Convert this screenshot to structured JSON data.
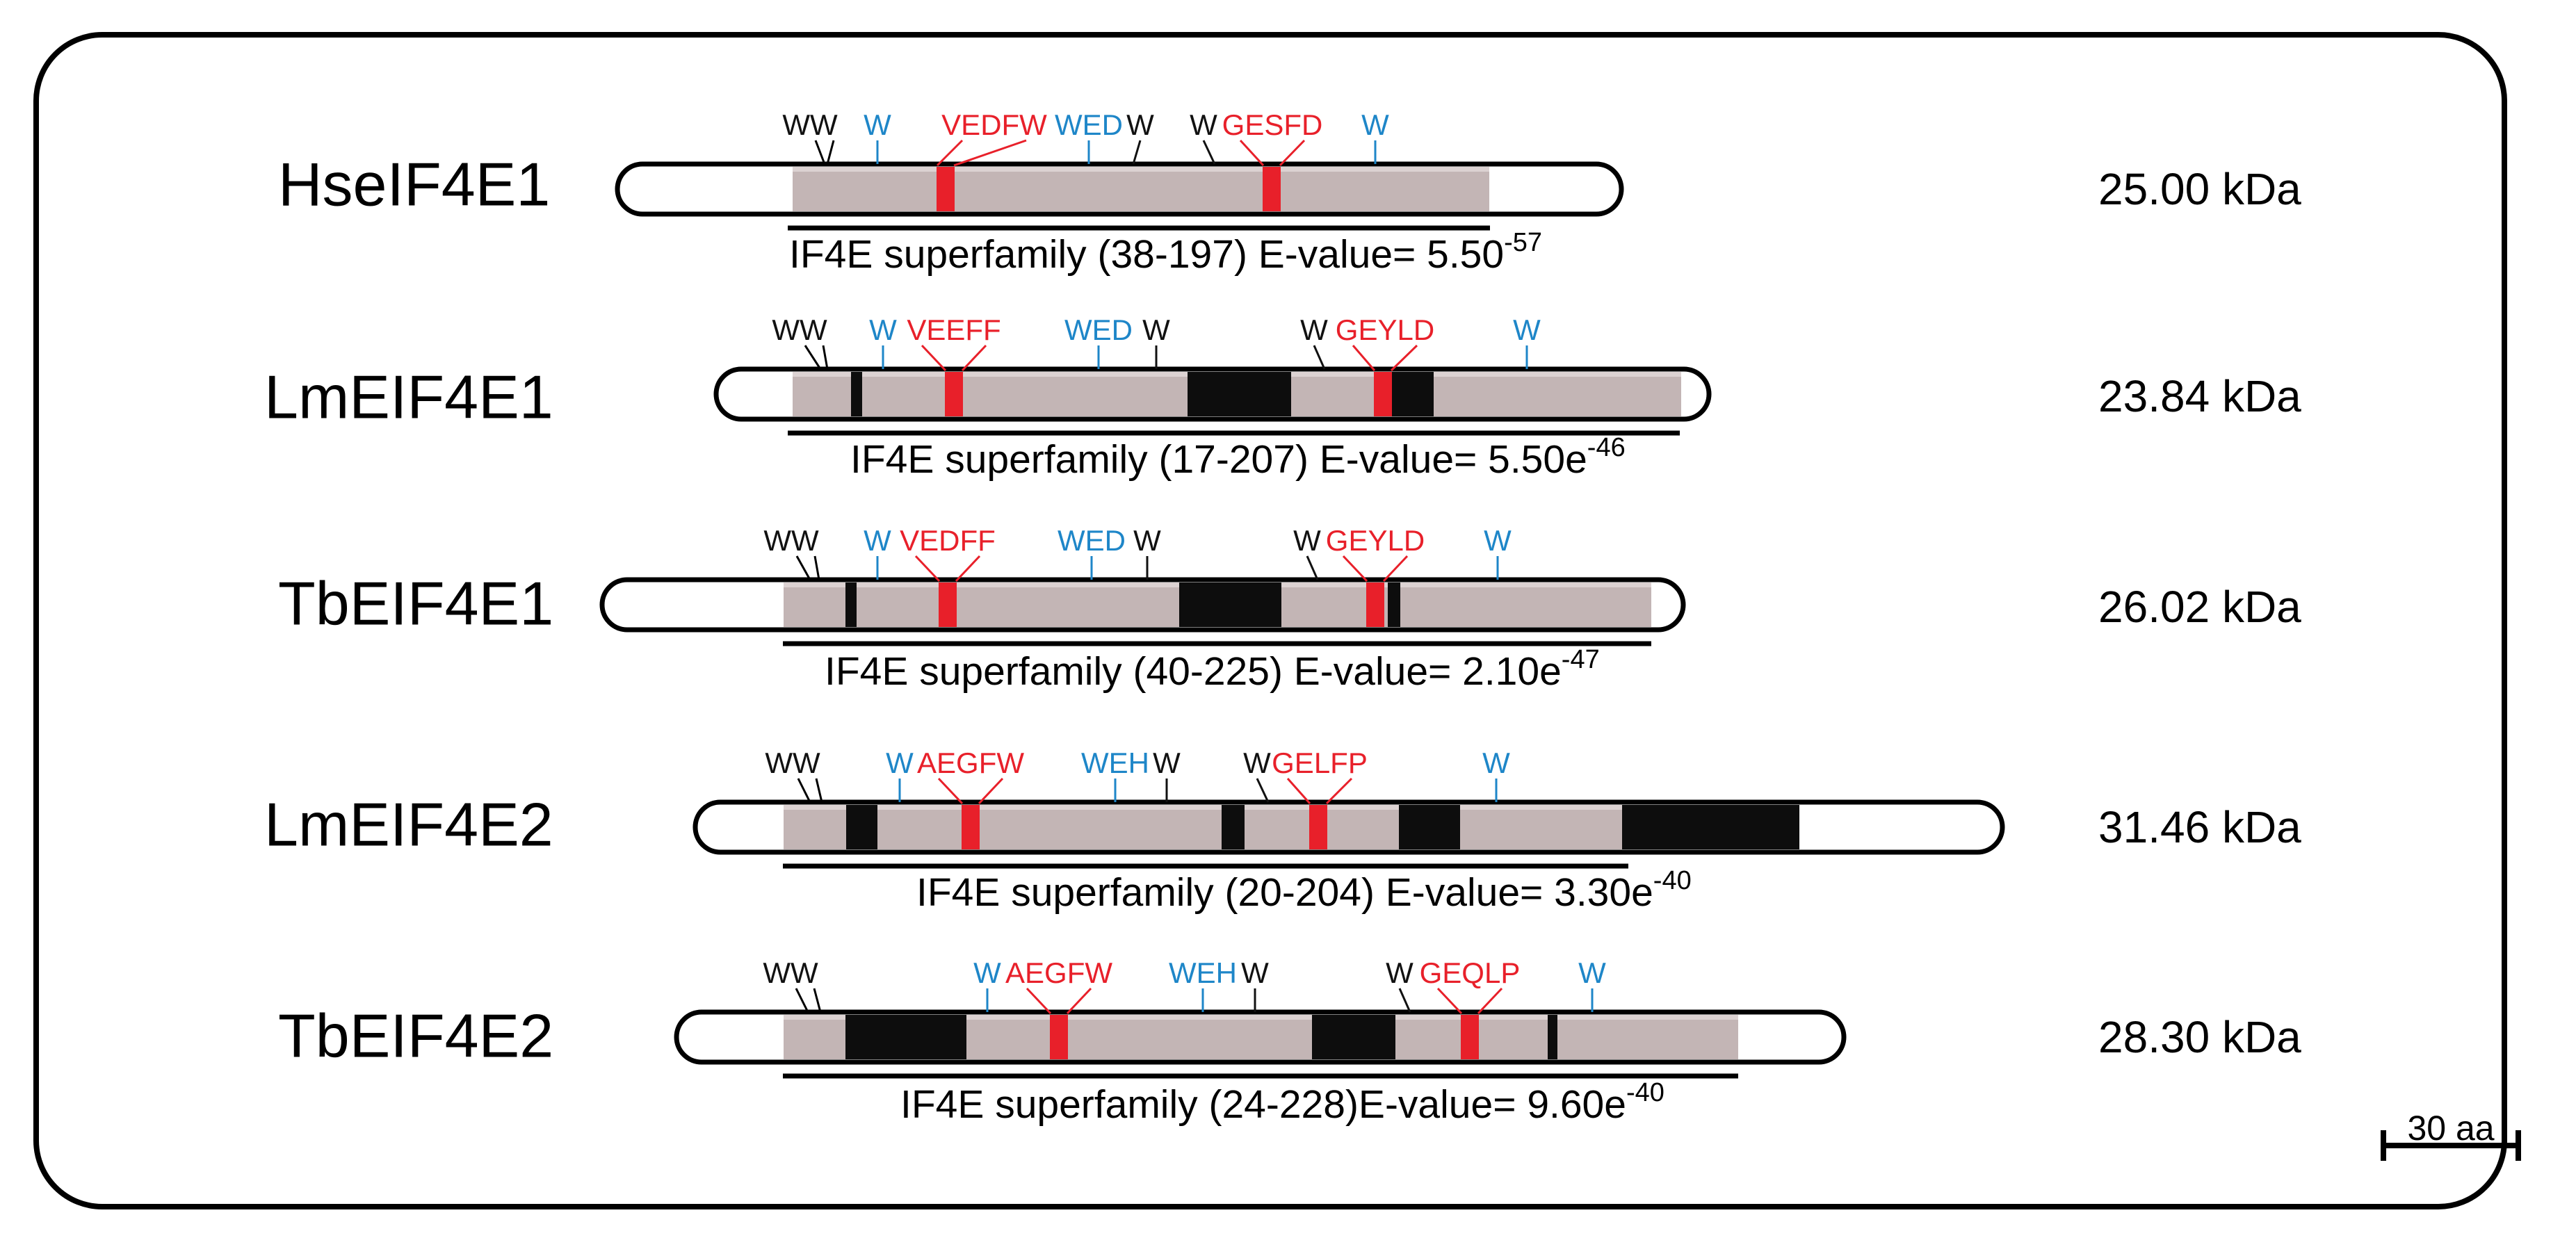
{
  "scale_bar": {
    "label": "30 aa"
  },
  "colors": {
    "domain_fill": "#c3b5b5",
    "disordered_fill": "#0d0d0d",
    "motif_red": "#e8202a",
    "conserved_blue": "#1e86c8",
    "tryptophan_black": "#111111",
    "outline": "#000000"
  },
  "proteins": [
    {
      "name": "HseIF4E1",
      "mass": "25.00 kDa",
      "caption": {
        "text": "IF4E superfamily (38-197) E-value= 5.50",
        "sup": "-57"
      },
      "labels": [
        {
          "text": "WW",
          "color": "black"
        },
        {
          "text": "W",
          "color": "blue"
        },
        {
          "text": "VEDFW",
          "color": "red"
        },
        {
          "text": "WED",
          "color": "blue"
        },
        {
          "text": "W",
          "color": "black"
        },
        {
          "text": "W",
          "color": "black"
        },
        {
          "text": "GESFD",
          "color": "red"
        },
        {
          "text": "W",
          "color": "blue"
        }
      ]
    },
    {
      "name": "LmEIF4E1",
      "mass": "23.84 kDa",
      "caption": {
        "text": "IF4E superfamily (17-207) E-value= 5.50e",
        "sup": "-46"
      },
      "labels": [
        {
          "text": "WW",
          "color": "black"
        },
        {
          "text": "W",
          "color": "blue"
        },
        {
          "text": "VEEFF",
          "color": "red"
        },
        {
          "text": "WED",
          "color": "blue"
        },
        {
          "text": "W",
          "color": "black"
        },
        {
          "text": "W",
          "color": "black"
        },
        {
          "text": "GEYLD",
          "color": "red"
        },
        {
          "text": "W",
          "color": "blue"
        }
      ]
    },
    {
      "name": "TbEIF4E1",
      "mass": "26.02 kDa",
      "caption": {
        "text": "IF4E superfamily (40-225) E-value= 2.10e",
        "sup": "-47"
      },
      "labels": [
        {
          "text": "WW",
          "color": "black"
        },
        {
          "text": "W",
          "color": "blue"
        },
        {
          "text": "VEDFF",
          "color": "red"
        },
        {
          "text": "WED",
          "color": "blue"
        },
        {
          "text": "W",
          "color": "black"
        },
        {
          "text": "W",
          "color": "black"
        },
        {
          "text": "GEYLD",
          "color": "red"
        },
        {
          "text": "W",
          "color": "blue"
        }
      ]
    },
    {
      "name": "LmEIF4E2",
      "mass": "31.46 kDa",
      "caption": {
        "text": "IF4E superfamily (20-204) E-value= 3.30e",
        "sup": "-40"
      },
      "labels": [
        {
          "text": "WW",
          "color": "black"
        },
        {
          "text": "W",
          "color": "blue"
        },
        {
          "text": "AEGFW",
          "color": "red"
        },
        {
          "text": "WEH",
          "color": "blue"
        },
        {
          "text": "W",
          "color": "black"
        },
        {
          "text": "W",
          "color": "black"
        },
        {
          "text": "GELFP",
          "color": "red"
        },
        {
          "text": "W",
          "color": "blue"
        }
      ]
    },
    {
      "name": "TbEIF4E2",
      "mass": "28.30 kDa",
      "caption": {
        "text": "IF4E superfamily (24-228)E-value= 9.60e",
        "sup": "-40"
      },
      "labels": [
        {
          "text": "WW",
          "color": "black"
        },
        {
          "text": "W",
          "color": "blue"
        },
        {
          "text": "AEGFW",
          "color": "red"
        },
        {
          "text": "WEH",
          "color": "blue"
        },
        {
          "text": "W",
          "color": "black"
        },
        {
          "text": "W",
          "color": "black"
        },
        {
          "text": "GEQLP",
          "color": "red"
        },
        {
          "text": "W",
          "color": "blue"
        }
      ]
    }
  ]
}
